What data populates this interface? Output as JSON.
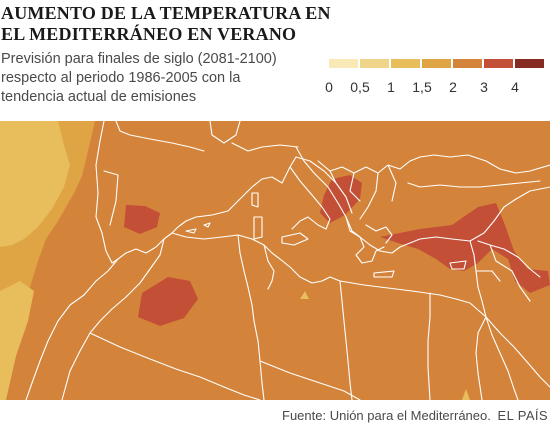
{
  "title": "AUMENTO DE LA TEMPERATURA EN EL MEDITERRÁNEO EN VERANO",
  "subtitle": "Previsión para finales de siglo (2081-2100) respecto al periodo 1986-2005 con la tendencia actual de emisiones",
  "legend": {
    "classes": [
      {
        "color": "#f8e9b6"
      },
      {
        "color": "#f0d489"
      },
      {
        "color": "#e8bd5c"
      },
      {
        "color": "#dfa444"
      },
      {
        "color": "#d4843a"
      },
      {
        "color": "#c24f36"
      },
      {
        "color": "#862b22"
      }
    ],
    "labels": [
      "0",
      "0,5",
      "1",
      "1,5",
      "2",
      "3",
      "4"
    ]
  },
  "map_colors": {
    "base": "#d4843a",
    "cooler": "#dfa444",
    "coolest": "#e8bd5c",
    "hot": "#c24f36",
    "border": "#ffffff"
  },
  "footer": {
    "source": "Fuente: Unión para el Mediterráneo.",
    "brand": "EL PAÍS"
  }
}
